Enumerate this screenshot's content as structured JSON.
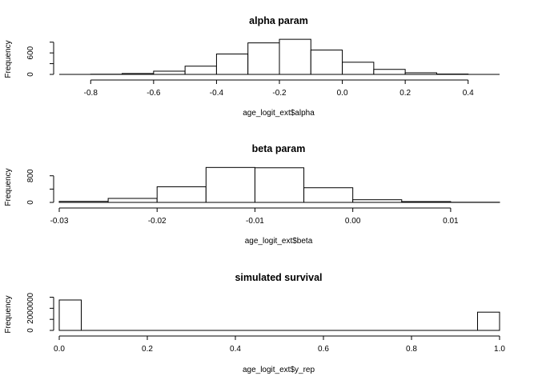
{
  "chart_data": [
    {
      "type": "bar",
      "subtype": "histogram",
      "title": "alpha param",
      "xlabel": "age_logit_ext$alpha",
      "ylabel": "Frequency",
      "xlim": [
        -0.9,
        0.5
      ],
      "ylim": [
        0,
        1050
      ],
      "xticks": [
        -0.8,
        -0.6,
        -0.4,
        -0.2,
        0.0,
        0.2,
        0.4
      ],
      "xtick_labels": [
        "-0.8",
        "-0.6",
        "-0.4",
        "-0.2",
        "0.0",
        "0.2",
        "0.4"
      ],
      "yticks": [
        0,
        600
      ],
      "ytick_labels": [
        "0",
        "600"
      ],
      "bin_edges": [
        -0.8,
        -0.7,
        -0.6,
        -0.5,
        -0.4,
        -0.3,
        -0.2,
        -0.1,
        0.0,
        0.1,
        0.2,
        0.3,
        0.4
      ],
      "values": [
        5,
        25,
        90,
        230,
        570,
        880,
        980,
        680,
        340,
        140,
        45,
        10
      ],
      "grid": false
    },
    {
      "type": "bar",
      "subtype": "histogram",
      "title": "beta param",
      "xlabel": "age_logit_ext$beta",
      "ylabel": "Frequency",
      "xlim": [
        -0.03,
        0.015
      ],
      "ylim": [
        0,
        1130
      ],
      "xticks": [
        -0.03,
        -0.02,
        -0.01,
        0.0,
        0.01
      ],
      "xtick_labels": [
        "-0.03",
        "-0.02",
        "-0.01",
        "0.00",
        "0.01"
      ],
      "yticks": [
        0,
        800
      ],
      "ytick_labels": [
        "0",
        "800"
      ],
      "bin_edges": [
        -0.03,
        -0.025,
        -0.02,
        -0.015,
        -0.01,
        -0.005,
        0.0,
        0.005,
        0.01,
        0.015
      ],
      "values": [
        30,
        120,
        470,
        1050,
        1040,
        440,
        80,
        25,
        5
      ],
      "grid": false
    },
    {
      "type": "bar",
      "subtype": "histogram",
      "title": "simulated survival",
      "xlabel": "age_logit_ext$y_rep",
      "ylabel": "Frequency",
      "xlim": [
        0,
        1
      ],
      "ylim": [
        0,
        3400000
      ],
      "xticks": [
        0.0,
        0.2,
        0.4,
        0.6,
        0.8,
        1.0
      ],
      "xtick_labels": [
        "0.0",
        "0.2",
        "0.4",
        "0.6",
        "0.8",
        "1.0"
      ],
      "yticks": [
        0,
        2000000
      ],
      "ytick_labels": [
        "0",
        "2000000"
      ],
      "bin_edges": [
        0,
        0.05,
        0.1,
        0.15,
        0.2,
        0.25,
        0.3,
        0.35,
        0.4,
        0.45,
        0.5,
        0.55,
        0.6,
        0.65,
        0.7,
        0.75,
        0.8,
        0.85,
        0.9,
        0.95,
        1.0
      ],
      "values": [
        2750000,
        0,
        0,
        0,
        0,
        0,
        0,
        0,
        0,
        0,
        0,
        0,
        0,
        0,
        0,
        0,
        0,
        0,
        0,
        1650000
      ],
      "grid": false
    }
  ]
}
